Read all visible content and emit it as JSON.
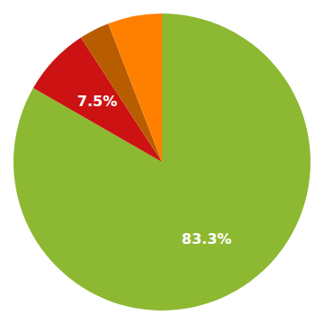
{
  "chart_data": {
    "type": "pie",
    "values": [
      83.3,
      7.5,
      3.3,
      5.9
    ],
    "colors": [
      "#8db832",
      "#cc1212",
      "#b85c00",
      "#ff8000"
    ],
    "data_labels": true,
    "value_labels": [
      "83.3%",
      "7.5%",
      null,
      null
    ]
  }
}
